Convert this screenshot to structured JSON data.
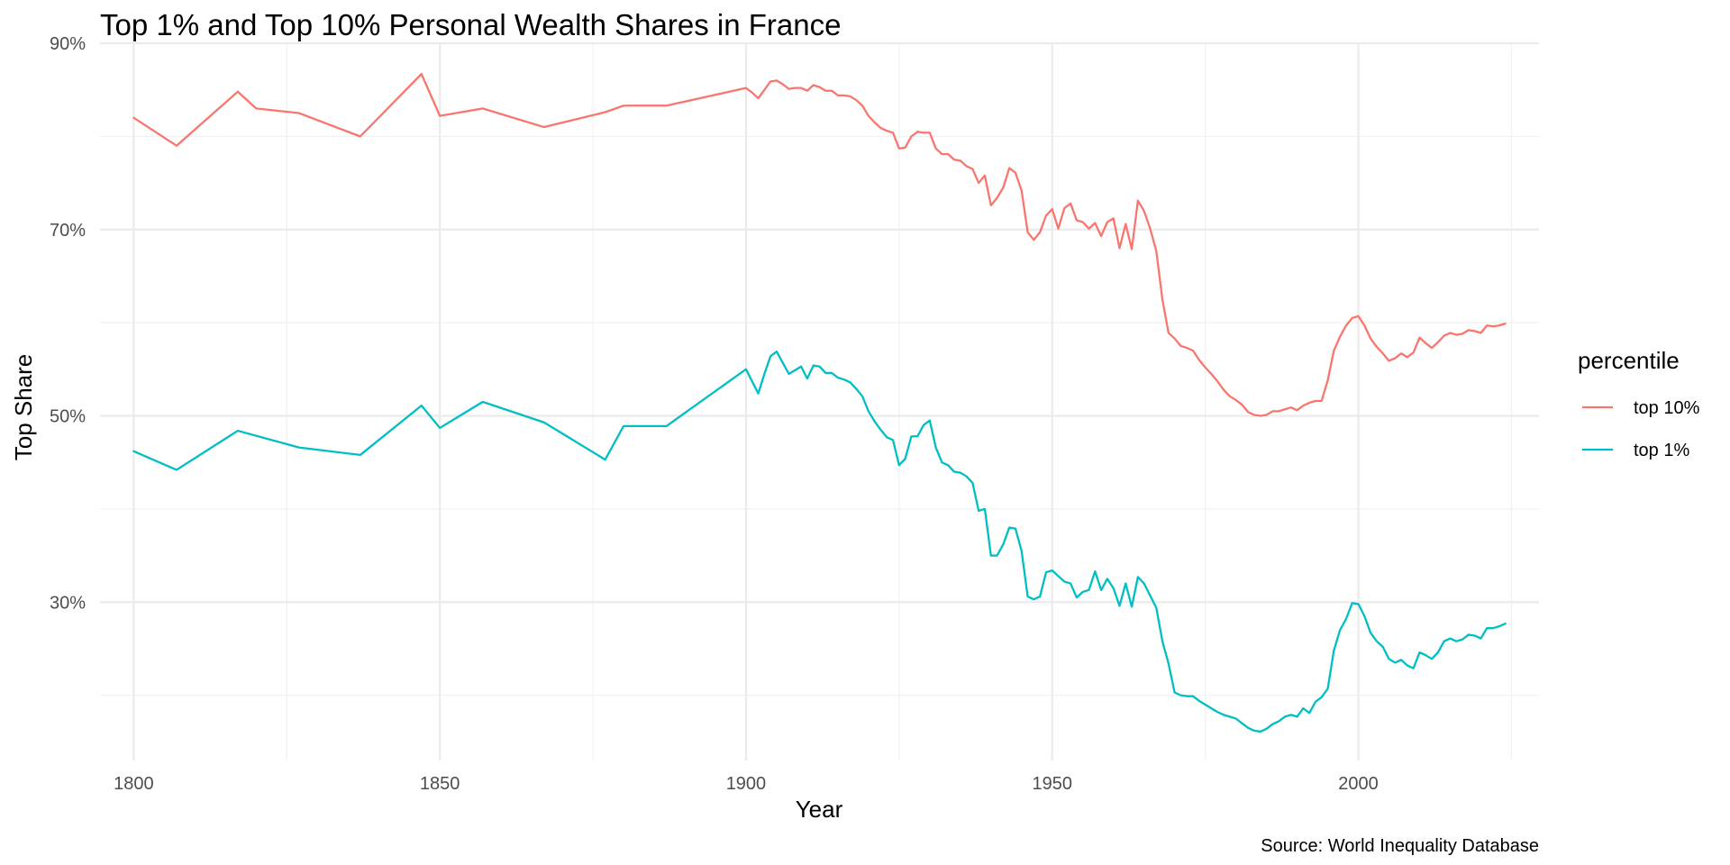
{
  "chart_data": {
    "type": "line",
    "title": "Top 1% and Top 10% Personal Wealth Shares in France",
    "xlabel": "Year",
    "ylabel": "Top Share",
    "caption": "Source: World Inequality Database",
    "xlim": [
      1794.5,
      2029.5
    ],
    "ylim": [
      0.13,
      0.9
    ],
    "x_ticks": [
      1800,
      1850,
      1900,
      1950,
      2000
    ],
    "x_tick_labels": [
      "1800",
      "1850",
      "1900",
      "1950",
      "2000"
    ],
    "y_ticks": [
      0.3,
      0.5,
      0.7,
      0.9
    ],
    "y_tick_labels": [
      "30%",
      "50%",
      "70%",
      "90%"
    ],
    "grid": true,
    "legend": {
      "title": "percentile",
      "position": "right"
    },
    "series": [
      {
        "name": "top 10%",
        "color": "#F8766D",
        "points": [
          [
            1800,
            0.82
          ],
          [
            1807,
            0.79
          ],
          [
            1817,
            0.848
          ],
          [
            1820,
            0.83
          ],
          [
            1827,
            0.825
          ],
          [
            1837,
            0.8
          ],
          [
            1847,
            0.867
          ],
          [
            1850,
            0.822
          ],
          [
            1857,
            0.83
          ],
          [
            1867,
            0.81
          ],
          [
            1877,
            0.826
          ],
          [
            1880,
            0.833
          ],
          [
            1887,
            0.833
          ],
          [
            1900,
            0.852
          ],
          [
            1901,
            0.847
          ],
          [
            1902,
            0.841
          ],
          [
            1903,
            0.85
          ],
          [
            1904,
            0.859
          ],
          [
            1905,
            0.86
          ],
          [
            1906,
            0.856
          ],
          [
            1907,
            0.851
          ],
          [
            1908,
            0.852
          ],
          [
            1909,
            0.852
          ],
          [
            1910,
            0.849
          ],
          [
            1911,
            0.855
          ],
          [
            1912,
            0.853
          ],
          [
            1913,
            0.849
          ],
          [
            1914,
            0.849
          ],
          [
            1915,
            0.844
          ],
          [
            1916,
            0.844
          ],
          [
            1917,
            0.843
          ],
          [
            1918,
            0.839
          ],
          [
            1919,
            0.833
          ],
          [
            1920,
            0.822
          ],
          [
            1921,
            0.815
          ],
          [
            1922,
            0.809
          ],
          [
            1923,
            0.806
          ],
          [
            1924,
            0.804
          ],
          [
            1925,
            0.787
          ],
          [
            1926,
            0.788
          ],
          [
            1927,
            0.8
          ],
          [
            1928,
            0.805
          ],
          [
            1929,
            0.804
          ],
          [
            1930,
            0.804
          ],
          [
            1931,
            0.787
          ],
          [
            1932,
            0.781
          ],
          [
            1933,
            0.781
          ],
          [
            1934,
            0.775
          ],
          [
            1935,
            0.774
          ],
          [
            1936,
            0.768
          ],
          [
            1937,
            0.765
          ],
          [
            1938,
            0.75
          ],
          [
            1939,
            0.758
          ],
          [
            1940,
            0.726
          ],
          [
            1941,
            0.734
          ],
          [
            1942,
            0.745
          ],
          [
            1943,
            0.766
          ],
          [
            1944,
            0.761
          ],
          [
            1945,
            0.742
          ],
          [
            1946,
            0.697
          ],
          [
            1947,
            0.689
          ],
          [
            1948,
            0.697
          ],
          [
            1949,
            0.715
          ],
          [
            1950,
            0.722
          ],
          [
            1951,
            0.701
          ],
          [
            1952,
            0.723
          ],
          [
            1953,
            0.728
          ],
          [
            1954,
            0.71
          ],
          [
            1955,
            0.708
          ],
          [
            1956,
            0.701
          ],
          [
            1957,
            0.707
          ],
          [
            1958,
            0.693
          ],
          [
            1959,
            0.708
          ],
          [
            1960,
            0.712
          ],
          [
            1961,
            0.68
          ],
          [
            1962,
            0.706
          ],
          [
            1963,
            0.679
          ],
          [
            1964,
            0.731
          ],
          [
            1965,
            0.72
          ],
          [
            1966,
            0.701
          ],
          [
            1967,
            0.677
          ],
          [
            1968,
            0.625
          ],
          [
            1969,
            0.589
          ],
          [
            1970,
            0.583
          ],
          [
            1971,
            0.575
          ],
          [
            1972,
            0.573
          ],
          [
            1973,
            0.57
          ],
          [
            1974,
            0.56
          ],
          [
            1975,
            0.552
          ],
          [
            1976,
            0.545
          ],
          [
            1977,
            0.537
          ],
          [
            1978,
            0.528
          ],
          [
            1979,
            0.521
          ],
          [
            1980,
            0.517
          ],
          [
            1981,
            0.512
          ],
          [
            1982,
            0.504
          ],
          [
            1983,
            0.501
          ],
          [
            1984,
            0.5
          ],
          [
            1985,
            0.501
          ],
          [
            1986,
            0.505
          ],
          [
            1987,
            0.505
          ],
          [
            1988,
            0.507
          ],
          [
            1989,
            0.509
          ],
          [
            1990,
            0.506
          ],
          [
            1991,
            0.511
          ],
          [
            1992,
            0.514
          ],
          [
            1993,
            0.516
          ],
          [
            1994,
            0.516
          ],
          [
            1995,
            0.538
          ],
          [
            1996,
            0.57
          ],
          [
            1997,
            0.585
          ],
          [
            1998,
            0.597
          ],
          [
            1999,
            0.605
          ],
          [
            2000,
            0.607
          ],
          [
            2001,
            0.597
          ],
          [
            2002,
            0.583
          ],
          [
            2003,
            0.574
          ],
          [
            2004,
            0.567
          ],
          [
            2005,
            0.559
          ],
          [
            2006,
            0.562
          ],
          [
            2007,
            0.567
          ],
          [
            2008,
            0.563
          ],
          [
            2009,
            0.568
          ],
          [
            2010,
            0.584
          ],
          [
            2011,
            0.578
          ],
          [
            2012,
            0.573
          ],
          [
            2013,
            0.579
          ],
          [
            2014,
            0.586
          ],
          [
            2015,
            0.589
          ],
          [
            2016,
            0.587
          ],
          [
            2017,
            0.588
          ],
          [
            2018,
            0.592
          ],
          [
            2019,
            0.591
          ],
          [
            2020,
            0.589
          ],
          [
            2021,
            0.597
          ],
          [
            2022,
            0.596
          ],
          [
            2023,
            0.597
          ],
          [
            2024,
            0.599
          ]
        ]
      },
      {
        "name": "top 1%",
        "color": "#00BFC4",
        "points": [
          [
            1800,
            0.462
          ],
          [
            1807,
            0.442
          ],
          [
            1817,
            0.484
          ],
          [
            1827,
            0.466
          ],
          [
            1837,
            0.458
          ],
          [
            1847,
            0.511
          ],
          [
            1850,
            0.487
          ],
          [
            1857,
            0.515
          ],
          [
            1867,
            0.493
          ],
          [
            1877,
            0.453
          ],
          [
            1880,
            0.489
          ],
          [
            1887,
            0.489
          ],
          [
            1900,
            0.55
          ],
          [
            1902,
            0.524
          ],
          [
            1903,
            0.545
          ],
          [
            1904,
            0.564
          ],
          [
            1905,
            0.569
          ],
          [
            1906,
            0.557
          ],
          [
            1907,
            0.545
          ],
          [
            1908,
            0.549
          ],
          [
            1909,
            0.553
          ],
          [
            1910,
            0.54
          ],
          [
            1911,
            0.554
          ],
          [
            1912,
            0.553
          ],
          [
            1913,
            0.546
          ],
          [
            1914,
            0.546
          ],
          [
            1915,
            0.541
          ],
          [
            1916,
            0.539
          ],
          [
            1917,
            0.536
          ],
          [
            1918,
            0.529
          ],
          [
            1919,
            0.521
          ],
          [
            1920,
            0.505
          ],
          [
            1921,
            0.494
          ],
          [
            1922,
            0.485
          ],
          [
            1923,
            0.477
          ],
          [
            1924,
            0.474
          ],
          [
            1925,
            0.447
          ],
          [
            1926,
            0.454
          ],
          [
            1927,
            0.478
          ],
          [
            1928,
            0.478
          ],
          [
            1929,
            0.49
          ],
          [
            1930,
            0.495
          ],
          [
            1931,
            0.466
          ],
          [
            1932,
            0.45
          ],
          [
            1933,
            0.447
          ],
          [
            1934,
            0.44
          ],
          [
            1935,
            0.439
          ],
          [
            1936,
            0.435
          ],
          [
            1937,
            0.428
          ],
          [
            1938,
            0.398
          ],
          [
            1939,
            0.4
          ],
          [
            1940,
            0.35
          ],
          [
            1941,
            0.35
          ],
          [
            1942,
            0.362
          ],
          [
            1943,
            0.38
          ],
          [
            1944,
            0.379
          ],
          [
            1945,
            0.355
          ],
          [
            1946,
            0.306
          ],
          [
            1947,
            0.303
          ],
          [
            1948,
            0.306
          ],
          [
            1949,
            0.332
          ],
          [
            1950,
            0.334
          ],
          [
            1951,
            0.328
          ],
          [
            1952,
            0.322
          ],
          [
            1953,
            0.32
          ],
          [
            1954,
            0.305
          ],
          [
            1955,
            0.311
          ],
          [
            1956,
            0.313
          ],
          [
            1957,
            0.333
          ],
          [
            1958,
            0.313
          ],
          [
            1959,
            0.325
          ],
          [
            1960,
            0.315
          ],
          [
            1961,
            0.296
          ],
          [
            1962,
            0.32
          ],
          [
            1963,
            0.295
          ],
          [
            1964,
            0.327
          ],
          [
            1965,
            0.32
          ],
          [
            1966,
            0.307
          ],
          [
            1967,
            0.294
          ],
          [
            1968,
            0.258
          ],
          [
            1969,
            0.234
          ],
          [
            1970,
            0.203
          ],
          [
            1971,
            0.2
          ],
          [
            1972,
            0.199
          ],
          [
            1973,
            0.199
          ],
          [
            1974,
            0.194
          ],
          [
            1975,
            0.19
          ],
          [
            1976,
            0.186
          ],
          [
            1977,
            0.182
          ],
          [
            1978,
            0.179
          ],
          [
            1979,
            0.177
          ],
          [
            1980,
            0.175
          ],
          [
            1981,
            0.17
          ],
          [
            1982,
            0.165
          ],
          [
            1983,
            0.162
          ],
          [
            1984,
            0.161
          ],
          [
            1985,
            0.164
          ],
          [
            1986,
            0.169
          ],
          [
            1987,
            0.172
          ],
          [
            1988,
            0.177
          ],
          [
            1989,
            0.179
          ],
          [
            1990,
            0.177
          ],
          [
            1991,
            0.186
          ],
          [
            1992,
            0.181
          ],
          [
            1993,
            0.193
          ],
          [
            1994,
            0.198
          ],
          [
            1995,
            0.207
          ],
          [
            1996,
            0.248
          ],
          [
            1997,
            0.27
          ],
          [
            1998,
            0.282
          ],
          [
            1999,
            0.299
          ],
          [
            2000,
            0.298
          ],
          [
            2001,
            0.285
          ],
          [
            2002,
            0.267
          ],
          [
            2003,
            0.258
          ],
          [
            2004,
            0.252
          ],
          [
            2005,
            0.239
          ],
          [
            2006,
            0.235
          ],
          [
            2007,
            0.238
          ],
          [
            2008,
            0.232
          ],
          [
            2009,
            0.229
          ],
          [
            2010,
            0.246
          ],
          [
            2011,
            0.243
          ],
          [
            2012,
            0.239
          ],
          [
            2013,
            0.246
          ],
          [
            2014,
            0.258
          ],
          [
            2015,
            0.261
          ],
          [
            2016,
            0.258
          ],
          [
            2017,
            0.26
          ],
          [
            2018,
            0.265
          ],
          [
            2019,
            0.264
          ],
          [
            2020,
            0.261
          ],
          [
            2021,
            0.272
          ],
          [
            2022,
            0.272
          ],
          [
            2023,
            0.274
          ],
          [
            2024,
            0.277
          ]
        ]
      }
    ]
  }
}
